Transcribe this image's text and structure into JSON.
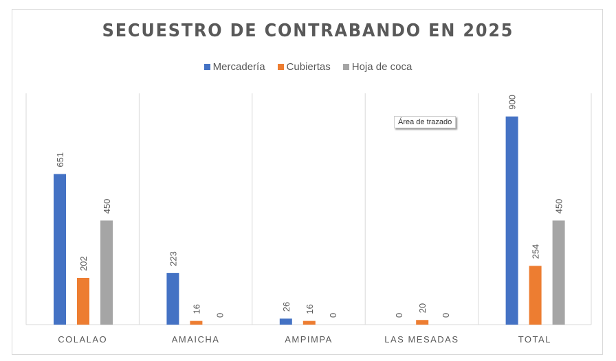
{
  "chart_data": {
    "type": "bar",
    "title": "SECUESTRO DE CONTRABANDO EN 2025",
    "categories": [
      "COLALAO",
      "AMAICHA",
      "AMPIMPA",
      "LAS MESADAS",
      "TOTAL"
    ],
    "series": [
      {
        "name": "Mercadería",
        "color": "#4472c4",
        "values": [
          651,
          223,
          26,
          0,
          900
        ]
      },
      {
        "name": "Cubiertas",
        "color": "#ed7d31",
        "values": [
          202,
          16,
          16,
          20,
          254
        ]
      },
      {
        "name": "Hoja de coca",
        "color": "#a5a5a5",
        "values": [
          450,
          0,
          0,
          0,
          450
        ]
      }
    ],
    "ylim": [
      0,
      1000
    ],
    "grid": "vertical category separators",
    "legend": "top",
    "data_labels": true
  },
  "tooltip": "Área de trazado"
}
